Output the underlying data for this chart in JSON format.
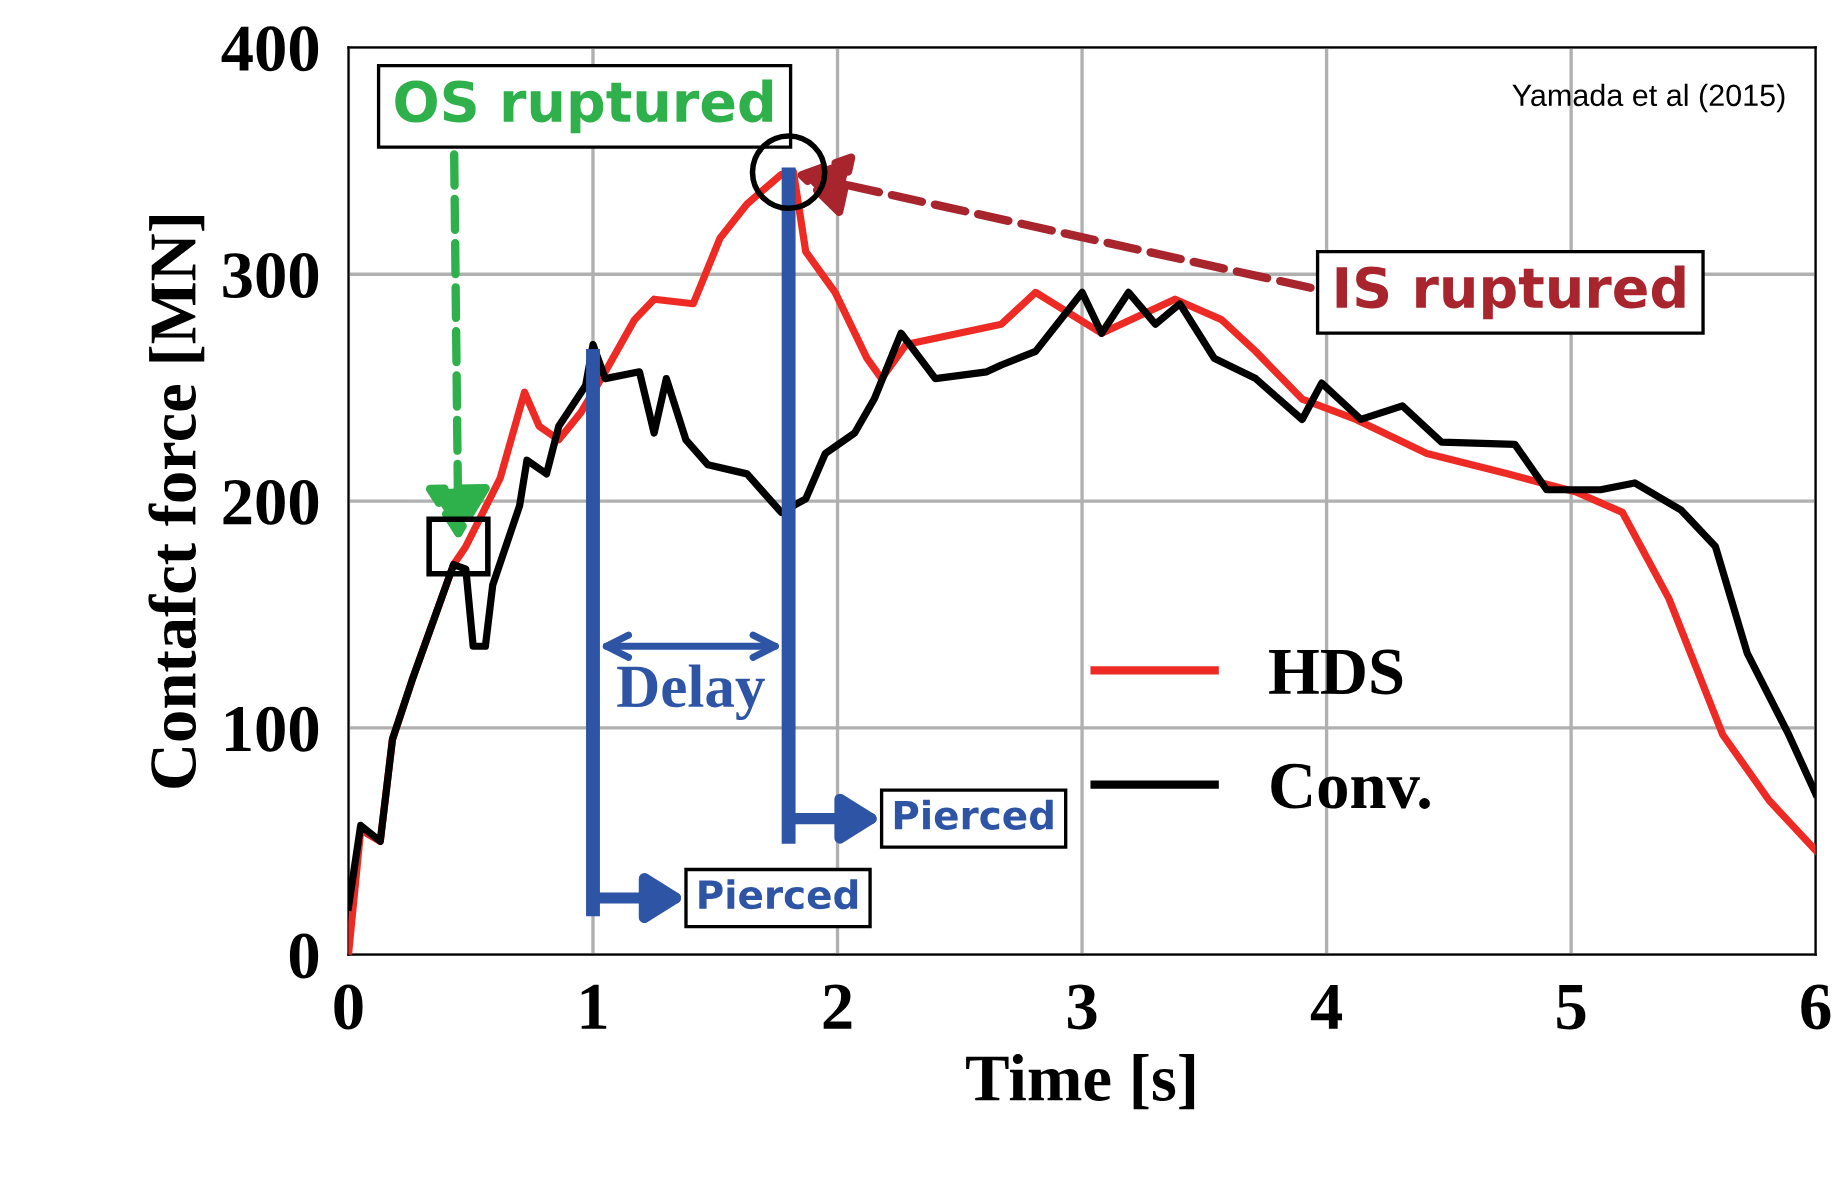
{
  "chart_data": {
    "type": "line",
    "xlabel": "Time [s]",
    "ylabel": "Contafct force [MN]",
    "xlim": [
      0,
      6
    ],
    "ylim": [
      0,
      400
    ],
    "xticks": [
      0,
      1,
      2,
      3,
      4,
      5,
      6
    ],
    "yticks": [
      0,
      100,
      200,
      300,
      400
    ],
    "grid": true,
    "legend": "lower right",
    "line_style": "solid",
    "marker": "none",
    "series": [
      {
        "name": "HDS",
        "color": "#ee2a24",
        "x": [
          0,
          0.05,
          0.13,
          0.18,
          0.26,
          0.35,
          0.43,
          0.48,
          0.55,
          0.62,
          0.72,
          0.78,
          0.86,
          0.95,
          1.05,
          1.17,
          1.25,
          1.41,
          1.52,
          1.63,
          1.77,
          1.82,
          1.87,
          1.99,
          2.12,
          2.18,
          2.28,
          2.67,
          2.81,
          3.08,
          3.38,
          3.57,
          3.71,
          3.9,
          4.12,
          4.41,
          4.74,
          5.02,
          5.21,
          5.4,
          5.62,
          5.81,
          6.0
        ],
        "values": [
          0,
          55,
          50,
          95,
          121,
          148,
          172,
          180,
          195,
          210,
          248,
          233,
          227,
          239,
          257,
          280,
          289,
          287,
          316,
          331,
          344,
          345,
          310,
          292,
          263,
          254,
          269,
          278,
          292,
          274,
          289,
          280,
          266,
          245,
          236,
          221,
          212,
          204,
          195,
          157,
          97,
          68,
          46
        ]
      },
      {
        "name": "Conv.",
        "color": "#000000",
        "x": [
          0,
          0.05,
          0.13,
          0.18,
          0.26,
          0.35,
          0.43,
          0.48,
          0.51,
          0.56,
          0.59,
          0.7,
          0.73,
          0.81,
          0.86,
          0.97,
          1.0,
          1.05,
          1.19,
          1.25,
          1.3,
          1.38,
          1.47,
          1.63,
          1.77,
          1.87,
          1.95,
          2.07,
          2.15,
          2.26,
          2.4,
          2.61,
          2.67,
          2.81,
          3.0,
          3.08,
          3.19,
          3.3,
          3.4,
          3.54,
          3.71,
          3.9,
          3.98,
          4.14,
          4.31,
          4.47,
          4.77,
          4.9,
          5.12,
          5.26,
          5.45,
          5.59,
          5.72,
          5.89,
          6.0
        ],
        "values": [
          21,
          57,
          50,
          95,
          121,
          148,
          172,
          170,
          136,
          136,
          163,
          198,
          218,
          212,
          233,
          251,
          269,
          254,
          257,
          230,
          254,
          227,
          216,
          212,
          195,
          201,
          221,
          230,
          245,
          274,
          254,
          257,
          260,
          266,
          292,
          274,
          292,
          278,
          287,
          263,
          254,
          236,
          252,
          236,
          242,
          226,
          225,
          205,
          205,
          208,
          196,
          180,
          133,
          97,
          71
        ]
      }
    ],
    "ref_lines": [
      {
        "axis": "x",
        "value": 1.0,
        "color": "#2e55a5"
      },
      {
        "axis": "x",
        "value": 1.8,
        "color": "#2e55a5"
      }
    ],
    "annotations": [
      {
        "text": "OS ruptured",
        "x": 0.45,
        "y": 180
      },
      {
        "text": "IS ruptured",
        "x": 1.8,
        "y": 345
      },
      "Delay",
      {
        "text": "Pierced",
        "x": 1.0,
        "y": 30
      },
      {
        "text": "Pierced",
        "x": 1.8,
        "y": 65
      },
      "Yamada et al (2015)"
    ]
  }
}
